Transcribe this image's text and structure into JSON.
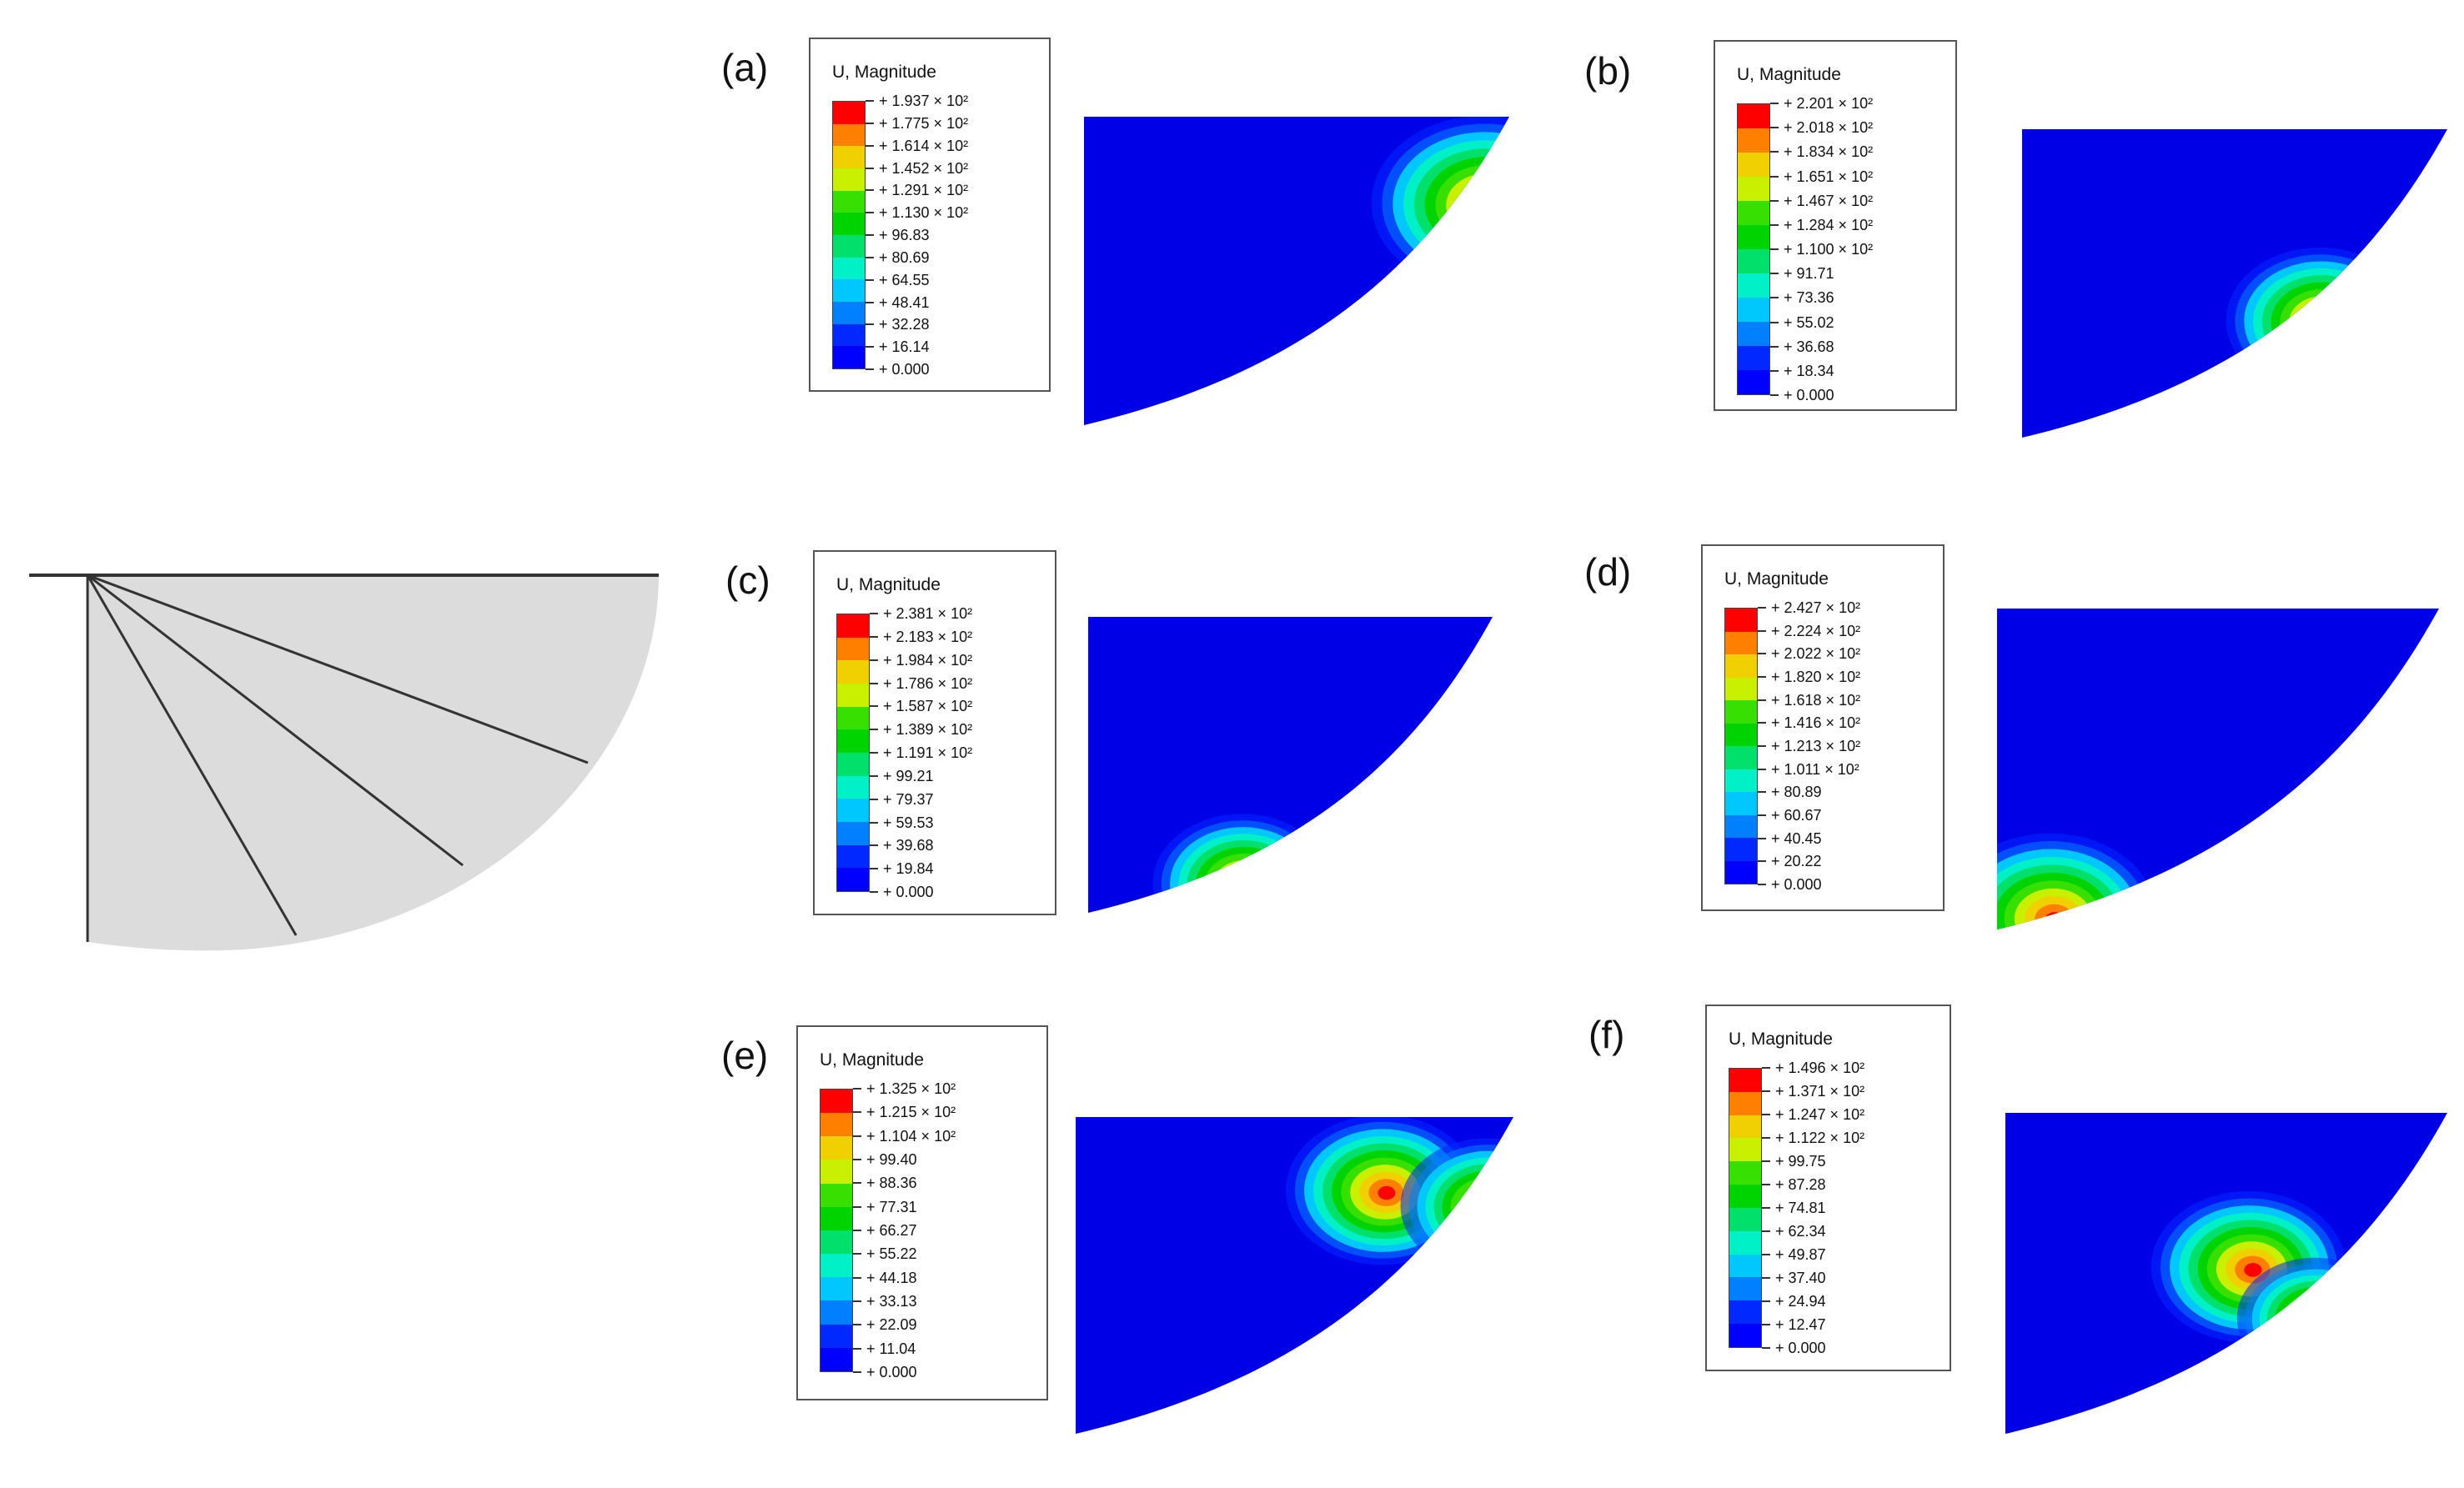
{
  "colors": {
    "scale": [
      "#0000ff",
      "#0028ff",
      "#0080ff",
      "#00c8ff",
      "#00f0c8",
      "#00e06a",
      "#00d400",
      "#38e000",
      "#c8f000",
      "#f0d000",
      "#ff8000",
      "#ff0000"
    ],
    "background": "#0000e6",
    "schematic_fill": "#dcdcdc"
  },
  "panels": [
    {
      "id": "a",
      "label": "(a)",
      "legend_title": "U, Magnitude",
      "values": [
        "+ 1.937 × 10²",
        "+ 1.775 × 10²",
        "+ 1.614 × 10²",
        "+ 1.452 × 10²",
        "+ 1.291 × 10²",
        "+ 1.130 × 10²",
        "+ 96.83",
        "+ 80.69",
        "+ 64.55",
        "+ 48.41",
        "+ 32.28",
        "+ 16.14",
        "+ 0.000"
      ]
    },
    {
      "id": "b",
      "label": "(b)",
      "legend_title": "U, Magnitude",
      "values": [
        "+ 2.201 × 10²",
        "+ 2.018 × 10²",
        "+ 1.834 × 10²",
        "+ 1.651 × 10²",
        "+ 1.467 × 10²",
        "+ 1.284 × 10²",
        "+ 1.100 × 10²",
        "+ 91.71",
        "+ 73.36",
        "+ 55.02",
        "+ 36.68",
        "+ 18.34",
        "+ 0.000"
      ]
    },
    {
      "id": "c",
      "label": "(c)",
      "legend_title": "U, Magnitude",
      "values": [
        "+ 2.381 × 10²",
        "+ 2.183 × 10²",
        "+ 1.984 × 10²",
        "+ 1.786 × 10²",
        "+ 1.587 × 10²",
        "+ 1.389 × 10²",
        "+ 1.191 × 10²",
        "+ 99.21",
        "+ 79.37",
        "+ 59.53",
        "+ 39.68",
        "+ 19.84",
        "+ 0.000"
      ]
    },
    {
      "id": "d",
      "label": "(d)",
      "legend_title": "U, Magnitude",
      "values": [
        "+ 2.427 × 10²",
        "+ 2.224 × 10²",
        "+ 2.022 × 10²",
        "+ 1.820 × 10²",
        "+ 1.618 × 10²",
        "+ 1.416 × 10²",
        "+ 1.213 × 10²",
        "+ 1.011 × 10²",
        "+ 80.89",
        "+ 60.67",
        "+ 40.45",
        "+ 20.22",
        "+ 0.000"
      ]
    },
    {
      "id": "e",
      "label": "(e)",
      "legend_title": "U, Magnitude",
      "values": [
        "+ 1.325 × 10²",
        "+ 1.215 × 10²",
        "+ 1.104 × 10²",
        "+ 99.40",
        "+ 88.36",
        "+ 77.31",
        "+ 66.27",
        "+ 55.22",
        "+ 44.18",
        "+ 33.13",
        "+ 22.09",
        "+ 11.04",
        "+ 0.000"
      ]
    },
    {
      "id": "f",
      "label": "(f)",
      "legend_title": "U, Magnitude",
      "values": [
        "+ 1.496 × 10²",
        "+ 1.371 × 10²",
        "+ 1.247 × 10²",
        "+ 1.122 × 10²",
        "+ 99.75",
        "+ 87.28",
        "+ 74.81",
        "+ 62.34",
        "+ 49.87",
        "+ 37.40",
        "+ 24.94",
        "+ 12.47",
        "+ 0.000"
      ]
    }
  ]
}
